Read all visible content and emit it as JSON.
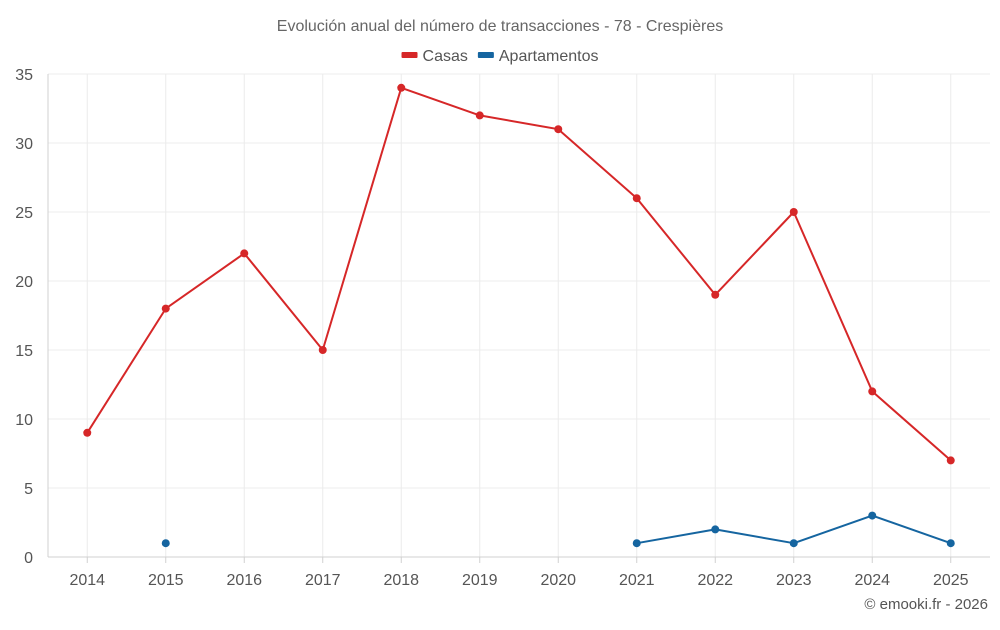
{
  "chart_data": {
    "type": "line",
    "title": "Evolución anual del número de transacciones - 78 - Crespières",
    "xlabel": "",
    "ylabel": "",
    "x": [
      "2014",
      "2015",
      "2016",
      "2017",
      "2018",
      "2019",
      "2020",
      "2021",
      "2022",
      "2023",
      "2024",
      "2025"
    ],
    "ylim": [
      0,
      35
    ],
    "yticks": [
      0,
      5,
      10,
      15,
      20,
      25,
      30,
      35
    ],
    "grid": true,
    "legend_position": "top-center",
    "series": [
      {
        "name": "Casas",
        "color": "#d62728",
        "values": [
          9,
          18,
          22,
          15,
          34,
          32,
          31,
          26,
          19,
          25,
          12,
          7
        ]
      },
      {
        "name": "Apartamentos",
        "color": "#1565a0",
        "values": [
          null,
          1,
          null,
          null,
          null,
          null,
          null,
          1,
          2,
          1,
          3,
          1
        ]
      }
    ]
  },
  "credit": "© emooki.fr - 2026"
}
